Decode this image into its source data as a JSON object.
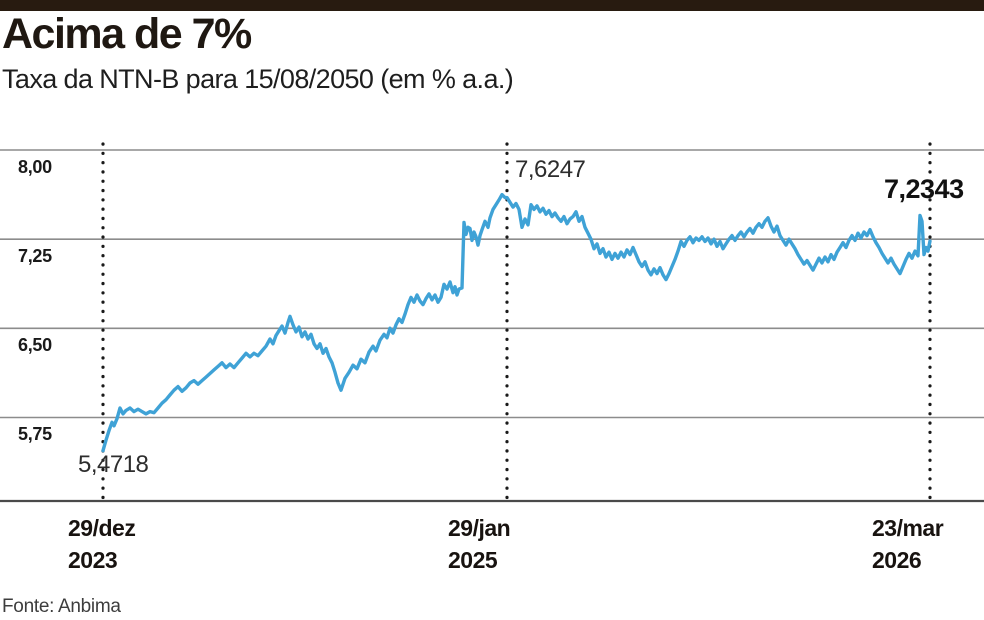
{
  "header": {
    "title": "Acima de 7%",
    "subtitle": "Taxa da NTN-B para 15/08/2050 (em % a.a.)"
  },
  "footer": {
    "source": "Fonte: Anbima"
  },
  "colors": {
    "line": "#3fa2d6",
    "top_bar": "#281b10",
    "grid": "#8c8c8c",
    "axis": "#4a4a4a",
    "dotted": "#1a1a1a"
  },
  "chart_data": {
    "type": "line",
    "title": "Acima de 7%",
    "subtitle": "Taxa da NTN-B para 15/08/2050 (em % a.a.)",
    "unit": "% a.a.",
    "series_name": "Taxa da NTN-B para 15/08/2050",
    "grid": "horizontal",
    "legend": "none",
    "ylim": [
      5.05,
      8.08
    ],
    "y_ticks": [
      {
        "label": "8,00",
        "value": 8.0
      },
      {
        "label": "7,25",
        "value": 7.25
      },
      {
        "label": "6,50",
        "value": 6.5
      },
      {
        "label": "5,75",
        "value": 5.75
      }
    ],
    "x_ticks": [
      {
        "date": "29/dez",
        "year": "2023"
      },
      {
        "date": "29/jan",
        "year": "2025"
      },
      {
        "date": "23/mar",
        "year": "2026"
      }
    ],
    "annotations": {
      "start": {
        "label": "5,4718",
        "value": 5.4718,
        "at": "29/dez/2023"
      },
      "peak": {
        "label": "7,6247",
        "value": 7.6247,
        "at": "29/jan/2025"
      },
      "end": {
        "label": "7,2343",
        "value": 7.2343,
        "at": "23/mar/2026"
      }
    },
    "x_unit": "px-along-axis (103 = 29/dez/2023, 507 = 29/jan/2025, 930 = 23/mar/2026)",
    "points": [
      [
        103,
        5.4718
      ],
      [
        106,
        5.56
      ],
      [
        109,
        5.64
      ],
      [
        112,
        5.71
      ],
      [
        114,
        5.68
      ],
      [
        117,
        5.74
      ],
      [
        120,
        5.83
      ],
      [
        123,
        5.78
      ],
      [
        126,
        5.81
      ],
      [
        130,
        5.83
      ],
      [
        134,
        5.8
      ],
      [
        138,
        5.82
      ],
      [
        142,
        5.8
      ],
      [
        146,
        5.78
      ],
      [
        150,
        5.8
      ],
      [
        154,
        5.79
      ],
      [
        158,
        5.83
      ],
      [
        162,
        5.87
      ],
      [
        166,
        5.9
      ],
      [
        170,
        5.94
      ],
      [
        174,
        5.98
      ],
      [
        178,
        6.01
      ],
      [
        182,
        5.97
      ],
      [
        186,
        6.0
      ],
      [
        190,
        6.04
      ],
      [
        194,
        6.06
      ],
      [
        198,
        6.03
      ],
      [
        202,
        6.06
      ],
      [
        206,
        6.09
      ],
      [
        210,
        6.12
      ],
      [
        214,
        6.15
      ],
      [
        218,
        6.18
      ],
      [
        222,
        6.21
      ],
      [
        226,
        6.17
      ],
      [
        230,
        6.2
      ],
      [
        234,
        6.17
      ],
      [
        238,
        6.21
      ],
      [
        242,
        6.25
      ],
      [
        246,
        6.29
      ],
      [
        250,
        6.26
      ],
      [
        254,
        6.29
      ],
      [
        258,
        6.27
      ],
      [
        262,
        6.31
      ],
      [
        266,
        6.35
      ],
      [
        270,
        6.41
      ],
      [
        273,
        6.37
      ],
      [
        276,
        6.44
      ],
      [
        279,
        6.48
      ],
      [
        282,
        6.52
      ],
      [
        285,
        6.46
      ],
      [
        288,
        6.55
      ],
      [
        290,
        6.6
      ],
      [
        293,
        6.53
      ],
      [
        296,
        6.47
      ],
      [
        299,
        6.51
      ],
      [
        302,
        6.43
      ],
      [
        305,
        6.47
      ],
      [
        308,
        6.41
      ],
      [
        311,
        6.45
      ],
      [
        314,
        6.37
      ],
      [
        317,
        6.33
      ],
      [
        320,
        6.37
      ],
      [
        323,
        6.29
      ],
      [
        326,
        6.33
      ],
      [
        329,
        6.26
      ],
      [
        332,
        6.21
      ],
      [
        335,
        6.13
      ],
      [
        338,
        6.04
      ],
      [
        341,
        5.98
      ],
      [
        345,
        6.08
      ],
      [
        349,
        6.13
      ],
      [
        353,
        6.19
      ],
      [
        357,
        6.16
      ],
      [
        361,
        6.24
      ],
      [
        365,
        6.21
      ],
      [
        369,
        6.3
      ],
      [
        373,
        6.35
      ],
      [
        376,
        6.31
      ],
      [
        380,
        6.4
      ],
      [
        384,
        6.45
      ],
      [
        387,
        6.42
      ],
      [
        390,
        6.5
      ],
      [
        393,
        6.46
      ],
      [
        396,
        6.53
      ],
      [
        399,
        6.58
      ],
      [
        402,
        6.55
      ],
      [
        405,
        6.62
      ],
      [
        408,
        6.7
      ],
      [
        411,
        6.76
      ],
      [
        414,
        6.72
      ],
      [
        417,
        6.78
      ],
      [
        420,
        6.73
      ],
      [
        423,
        6.7
      ],
      [
        426,
        6.75
      ],
      [
        429,
        6.79
      ],
      [
        432,
        6.74
      ],
      [
        435,
        6.78
      ],
      [
        438,
        6.72
      ],
      [
        441,
        6.76
      ],
      [
        444,
        6.87
      ],
      [
        447,
        6.83
      ],
      [
        450,
        6.89
      ],
      [
        453,
        6.8
      ],
      [
        455,
        6.85
      ],
      [
        457,
        6.78
      ],
      [
        459,
        6.83
      ],
      [
        462,
        6.84
      ],
      [
        464,
        7.39
      ],
      [
        466,
        7.29
      ],
      [
        468,
        7.35
      ],
      [
        470,
        7.34
      ],
      [
        472,
        7.24
      ],
      [
        474,
        7.31
      ],
      [
        476,
        7.27
      ],
      [
        478,
        7.2
      ],
      [
        480,
        7.28
      ],
      [
        482,
        7.33
      ],
      [
        485,
        7.4
      ],
      [
        488,
        7.35
      ],
      [
        490,
        7.43
      ],
      [
        493,
        7.5
      ],
      [
        496,
        7.54
      ],
      [
        499,
        7.58
      ],
      [
        502,
        7.6247
      ],
      [
        505,
        7.6
      ],
      [
        507,
        7.6
      ],
      [
        510,
        7.56
      ],
      [
        513,
        7.52
      ],
      [
        516,
        7.55
      ],
      [
        519,
        7.5
      ],
      [
        522,
        7.35
      ],
      [
        525,
        7.42
      ],
      [
        528,
        7.37
      ],
      [
        531,
        7.54
      ],
      [
        534,
        7.5
      ],
      [
        537,
        7.53
      ],
      [
        540,
        7.48
      ],
      [
        543,
        7.51
      ],
      [
        546,
        7.46
      ],
      [
        549,
        7.49
      ],
      [
        552,
        7.44
      ],
      [
        555,
        7.47
      ],
      [
        558,
        7.43
      ],
      [
        561,
        7.4
      ],
      [
        564,
        7.44
      ],
      [
        567,
        7.38
      ],
      [
        570,
        7.42
      ],
      [
        573,
        7.44
      ],
      [
        576,
        7.48
      ],
      [
        579,
        7.4
      ],
      [
        582,
        7.44
      ],
      [
        585,
        7.35
      ],
      [
        588,
        7.3
      ],
      [
        591,
        7.25
      ],
      [
        594,
        7.17
      ],
      [
        597,
        7.21
      ],
      [
        600,
        7.13
      ],
      [
        603,
        7.17
      ],
      [
        606,
        7.1
      ],
      [
        609,
        7.14
      ],
      [
        612,
        7.08
      ],
      [
        615,
        7.13
      ],
      [
        618,
        7.09
      ],
      [
        621,
        7.14
      ],
      [
        624,
        7.1
      ],
      [
        627,
        7.16
      ],
      [
        630,
        7.12
      ],
      [
        633,
        7.18
      ],
      [
        636,
        7.12
      ],
      [
        639,
        7.06
      ],
      [
        642,
        7.02
      ],
      [
        645,
        7.06
      ],
      [
        648,
        6.99
      ],
      [
        651,
        6.95
      ],
      [
        654,
        7.0
      ],
      [
        657,
        6.96
      ],
      [
        660,
        7.01
      ],
      [
        663,
        6.95
      ],
      [
        666,
        6.91
      ],
      [
        669,
        6.96
      ],
      [
        672,
        7.02
      ],
      [
        675,
        7.08
      ],
      [
        678,
        7.15
      ],
      [
        681,
        7.23
      ],
      [
        684,
        7.19
      ],
      [
        687,
        7.24
      ],
      [
        690,
        7.27
      ],
      [
        693,
        7.22
      ],
      [
        696,
        7.26
      ],
      [
        699,
        7.24
      ],
      [
        702,
        7.27
      ],
      [
        705,
        7.23
      ],
      [
        708,
        7.26
      ],
      [
        711,
        7.21
      ],
      [
        714,
        7.25
      ],
      [
        717,
        7.19
      ],
      [
        720,
        7.23
      ],
      [
        723,
        7.17
      ],
      [
        726,
        7.21
      ],
      [
        729,
        7.25
      ],
      [
        732,
        7.28
      ],
      [
        735,
        7.24
      ],
      [
        738,
        7.28
      ],
      [
        741,
        7.31
      ],
      [
        744,
        7.27
      ],
      [
        747,
        7.31
      ],
      [
        750,
        7.34
      ],
      [
        753,
        7.3
      ],
      [
        756,
        7.35
      ],
      [
        759,
        7.38
      ],
      [
        762,
        7.35
      ],
      [
        765,
        7.4
      ],
      [
        768,
        7.43
      ],
      [
        771,
        7.36
      ],
      [
        774,
        7.31
      ],
      [
        777,
        7.36
      ],
      [
        780,
        7.28
      ],
      [
        783,
        7.24
      ],
      [
        786,
        7.2
      ],
      [
        789,
        7.25
      ],
      [
        792,
        7.21
      ],
      [
        795,
        7.17
      ],
      [
        798,
        7.12
      ],
      [
        801,
        7.08
      ],
      [
        804,
        7.04
      ],
      [
        807,
        7.07
      ],
      [
        810,
        7.03
      ],
      [
        813,
        6.99
      ],
      [
        816,
        7.04
      ],
      [
        819,
        7.09
      ],
      [
        822,
        7.05
      ],
      [
        825,
        7.1
      ],
      [
        828,
        7.06
      ],
      [
        831,
        7.12
      ],
      [
        834,
        7.08
      ],
      [
        837,
        7.14
      ],
      [
        840,
        7.18
      ],
      [
        843,
        7.22
      ],
      [
        846,
        7.18
      ],
      [
        849,
        7.24
      ],
      [
        852,
        7.28
      ],
      [
        855,
        7.24
      ],
      [
        858,
        7.3
      ],
      [
        861,
        7.26
      ],
      [
        864,
        7.31
      ],
      [
        867,
        7.28
      ],
      [
        870,
        7.33
      ],
      [
        873,
        7.27
      ],
      [
        876,
        7.22
      ],
      [
        879,
        7.18
      ],
      [
        882,
        7.13
      ],
      [
        885,
        7.09
      ],
      [
        888,
        7.05
      ],
      [
        891,
        7.09
      ],
      [
        894,
        7.04
      ],
      [
        897,
        7.0
      ],
      [
        900,
        6.96
      ],
      [
        903,
        7.02
      ],
      [
        906,
        7.08
      ],
      [
        909,
        7.13
      ],
      [
        912,
        7.09
      ],
      [
        915,
        7.15
      ],
      [
        918,
        7.11
      ],
      [
        920,
        7.45
      ],
      [
        922,
        7.4
      ],
      [
        924,
        7.12
      ],
      [
        926,
        7.18
      ],
      [
        928,
        7.15
      ],
      [
        930,
        7.2343
      ]
    ]
  }
}
